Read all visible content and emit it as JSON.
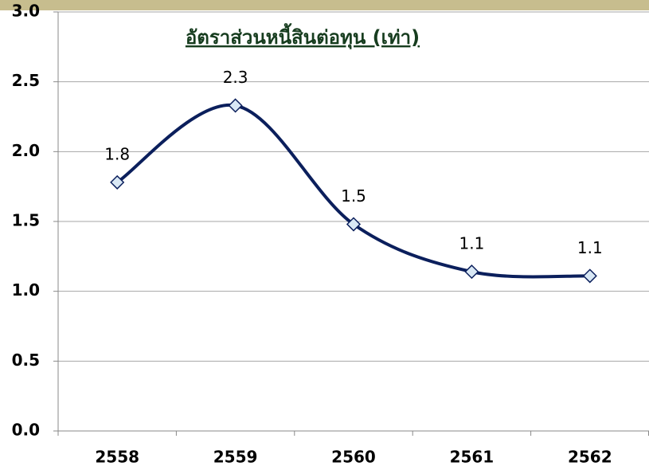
{
  "chart_data": {
    "type": "line",
    "title": "อัตราส่วนหนี้สินต่อทุน (เท่า)",
    "categories": [
      "2558",
      "2559",
      "2560",
      "2561",
      "2562"
    ],
    "series": [
      {
        "name": "อัตราส่วนหนี้สินต่อทุน",
        "color": "#0b1f5c",
        "values": [
          1.78,
          2.33,
          1.48,
          1.14,
          1.11
        ],
        "value_labels": [
          "1.8",
          "2.3",
          "1.5",
          "1.1",
          "1.1"
        ]
      }
    ],
    "ylim": [
      0,
      3
    ],
    "yticks": [
      {
        "value": 0,
        "label": "0.0"
      },
      0.5,
      {
        "value": 1,
        "label": "1.0"
      },
      1.5,
      {
        "value": 2,
        "label": "2.0"
      },
      2.5,
      {
        "value": 3,
        "label": "3.0"
      }
    ],
    "grid": true,
    "smooth": true
  }
}
